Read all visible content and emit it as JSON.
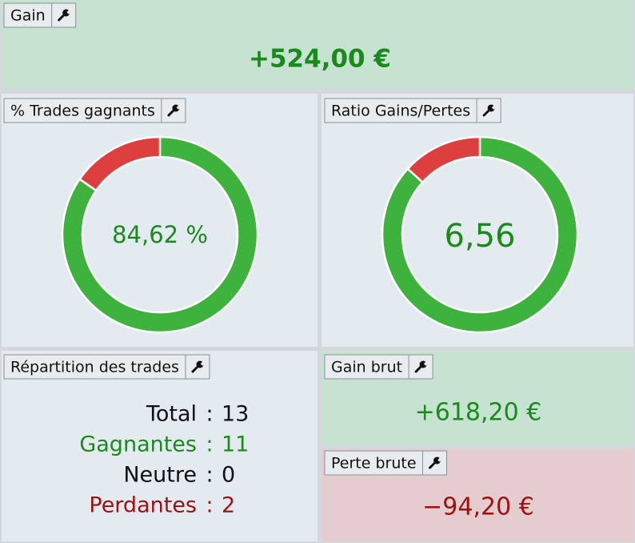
{
  "panels": {
    "gain": {
      "title": "Gain",
      "value": {
        "value": 524.0,
        "label": "+524,00 €"
      }
    },
    "win_rate": {
      "title": "% Trades gagnants",
      "value": {
        "value": 84.62,
        "label": "84,62 %"
      }
    },
    "ratio": {
      "title": "Ratio Gains/Pertes",
      "value": {
        "value": 6.56,
        "label": "6,56"
      }
    },
    "breakdown": {
      "title": "Répartition des trades",
      "separator": ":",
      "rows": [
        {
          "label": "Total",
          "value": 13
        },
        {
          "label": "Gagnantes",
          "value": 11
        },
        {
          "label": "Neutre",
          "value": 0
        },
        {
          "label": "Perdantes",
          "value": 2
        }
      ]
    },
    "gross_gain": {
      "title": "Gain brut",
      "value": {
        "value": 618.2,
        "label": "+618,20 €"
      }
    },
    "gross_loss": {
      "title": "Perte brute",
      "value": {
        "value": -94.2,
        "label": "−94,20 €"
      }
    }
  }
}
